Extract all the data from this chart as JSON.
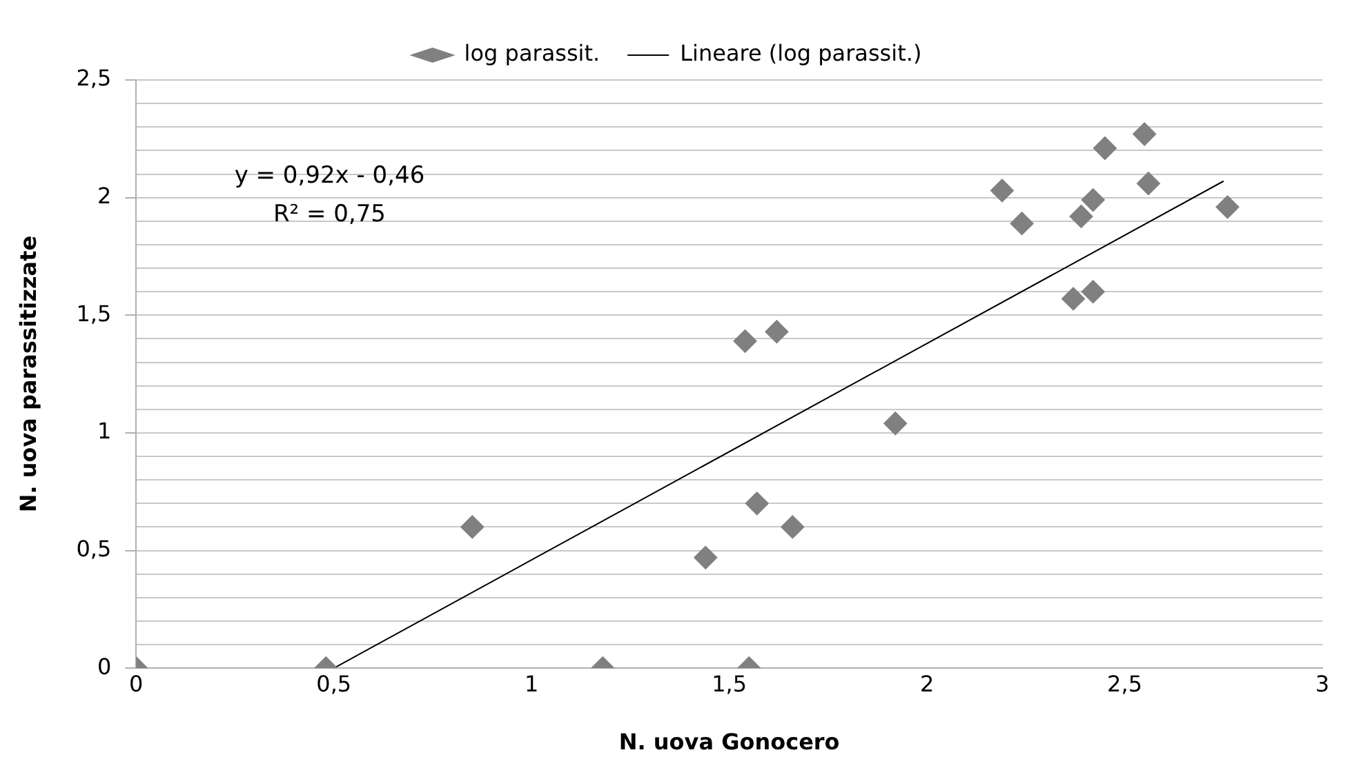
{
  "chart_data": {
    "type": "scatter",
    "xlabel": "N. uova Gonocero",
    "ylabel": "N. uova parassitizzate",
    "legend": "top",
    "grid": "y",
    "xlim": [
      0,
      3
    ],
    "xticks": [
      0,
      {
        "value": 0.5,
        "label": "0,5"
      },
      1,
      {
        "value": 1.5,
        "label": "1,5"
      },
      2,
      {
        "value": 2.5,
        "label": "2,5"
      },
      3
    ],
    "ylim": [
      0,
      2.5
    ],
    "yticks": [
      0,
      {
        "value": 0.1,
        "label": null
      },
      {
        "value": 0.2,
        "label": null
      },
      {
        "value": 0.3,
        "label": null
      },
      {
        "value": 0.4,
        "label": null
      },
      {
        "value": 0.5,
        "label": "0,5"
      },
      {
        "value": 0.6,
        "label": null
      },
      {
        "value": 0.7,
        "label": null
      },
      {
        "value": 0.8,
        "label": null
      },
      {
        "value": 0.9,
        "label": null
      },
      1,
      {
        "value": 1.1,
        "label": null
      },
      {
        "value": 1.2,
        "label": null
      },
      {
        "value": 1.3,
        "label": null
      },
      {
        "value": 1.4,
        "label": null
      },
      {
        "value": 1.5,
        "label": "1,5"
      },
      {
        "value": 1.6,
        "label": null
      },
      {
        "value": 1.7,
        "label": null
      },
      {
        "value": 1.8,
        "label": null
      },
      {
        "value": 1.9,
        "label": null
      },
      2,
      {
        "value": 2.1,
        "label": null
      },
      {
        "value": 2.2,
        "label": null
      },
      {
        "value": 2.3,
        "label": null
      },
      {
        "value": 2.4,
        "label": null
      },
      {
        "value": 2.5,
        "label": "2,5"
      }
    ],
    "annotations": [
      "y = 0,92x - 0,46",
      "R² = 0,75"
    ],
    "series": [
      {
        "name": "log parassit.",
        "type": "scatter",
        "marker": "diamond",
        "color": "#808080",
        "x": [
          0,
          0.48,
          0.85,
          1.44,
          1.18,
          1.54,
          1.62,
          1.57,
          1.66,
          1.55,
          1.92,
          2.19,
          2.24,
          2.39,
          2.42,
          2.37,
          2.42,
          2.45,
          2.55,
          2.56,
          2.76
        ],
        "values": [
          0,
          0,
          0.6,
          0.47,
          0,
          1.39,
          1.43,
          0.7,
          0.6,
          0,
          1.04,
          2.03,
          1.89,
          1.92,
          1.99,
          1.57,
          1.6,
          2.21,
          2.27,
          2.06,
          1.96
        ]
      },
      {
        "name": "Lineare (log parassit.)",
        "type": "line",
        "marker": "none",
        "color": "#000000",
        "x": [
          0.5,
          2.75
        ],
        "values": [
          0,
          2.07
        ]
      }
    ]
  }
}
